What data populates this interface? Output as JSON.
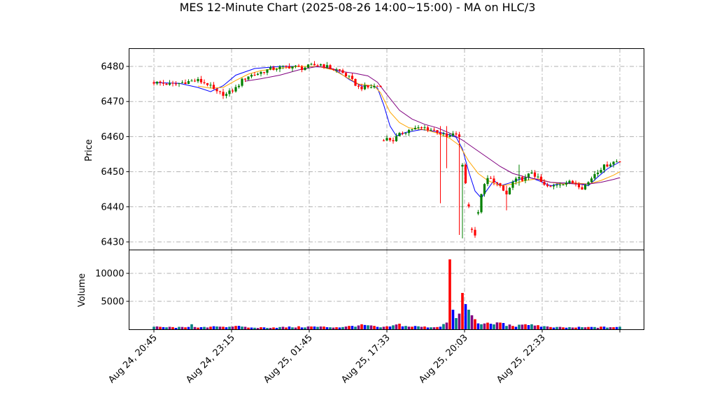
{
  "chart_data": [
    {
      "type": "candlestick",
      "title": "MES 12-Minute Chart (2025-08-26 14:00~15:00) - MA on HLC/3",
      "ylabel": "Price",
      "ylim": [
        6428,
        6485
      ],
      "yticks": [
        6430,
        6440,
        6450,
        6460,
        6470,
        6480
      ],
      "xticks": [
        "Aug 24, 20:45",
        "Aug 24, 23:15",
        "Aug 25, 01:45",
        "Aug 25, 17:33",
        "Aug 25, 20:03",
        "Aug 25, 22:33"
      ],
      "colors": {
        "up": "#008000",
        "down": "#ff0000",
        "ma_fast": "#0000ff",
        "ma_mid": "#ffa500",
        "ma_slow": "#800080"
      },
      "grid": true,
      "close_path": [
        [
          0,
          6475.5
        ],
        [
          6,
          6474.8
        ],
        [
          10,
          6475.6
        ],
        [
          14,
          6476.0
        ],
        [
          17,
          6475.0
        ],
        [
          20,
          6472.5
        ],
        [
          23,
          6472.0
        ],
        [
          26,
          6473.8
        ],
        [
          28,
          6476.0
        ],
        [
          30,
          6477.3
        ],
        [
          33,
          6478.0
        ],
        [
          36,
          6479.0
        ],
        [
          40,
          6479.7
        ],
        [
          44,
          6480.0
        ],
        [
          47,
          6479.5
        ],
        [
          50,
          6480.2
        ],
        [
          53,
          6480.6
        ],
        [
          56,
          6479.5
        ],
        [
          59,
          6478.8
        ],
        [
          62,
          6476.8
        ],
        [
          65,
          6474.0
        ],
        [
          68,
          6474.0
        ],
        [
          71,
          6474.5
        ],
        [
          72,
          6474.2
        ],
        [
          73,
          6459.5
        ],
        [
          76,
          6459.0
        ],
        [
          79,
          6461.2
        ],
        [
          82,
          6462.2
        ],
        [
          86,
          6462.5
        ],
        [
          90,
          6461.5
        ],
        [
          93,
          6459.8
        ],
        [
          96,
          6460.8
        ],
        [
          97,
          6459.5
        ],
        [
          98,
          6452.0
        ],
        [
          99,
          6447.0
        ],
        [
          100,
          6440.0
        ],
        [
          101,
          6434.0
        ],
        [
          102,
          6432.0
        ],
        [
          103,
          6438.0
        ],
        [
          104,
          6444.0
        ],
        [
          106,
          6448.0
        ],
        [
          108,
          6447.5
        ],
        [
          110,
          6445.5
        ],
        [
          112,
          6443.5
        ],
        [
          114,
          6447.0
        ],
        [
          116,
          6448.0
        ],
        [
          118,
          6448.0
        ],
        [
          120,
          6450.0
        ],
        [
          122,
          6448.0
        ],
        [
          124,
          6446.0
        ],
        [
          126,
          6445.5
        ],
        [
          128,
          6446.5
        ],
        [
          131,
          6447.0
        ],
        [
          134,
          6446.8
        ],
        [
          136,
          6445.5
        ],
        [
          138,
          6447.0
        ],
        [
          140,
          6449.5
        ],
        [
          142,
          6451.0
        ],
        [
          144,
          6452.0
        ],
        [
          146,
          6452.8
        ],
        [
          148,
          6453.0
        ]
      ],
      "ma_fast": [
        [
          0,
          6475.4
        ],
        [
          8,
          6475.2
        ],
        [
          14,
          6474.0
        ],
        [
          18,
          6472.8
        ],
        [
          22,
          6474.5
        ],
        [
          26,
          6477.5
        ],
        [
          32,
          6479.4
        ],
        [
          40,
          6480.0
        ],
        [
          48,
          6480.0
        ],
        [
          54,
          6479.8
        ],
        [
          58,
          6478.8
        ],
        [
          62,
          6476.3
        ],
        [
          66,
          6474.4
        ],
        [
          69,
          6474.6
        ],
        [
          71,
          6473.9
        ],
        [
          73,
          6469.0
        ],
        [
          75,
          6463.0
        ],
        [
          77,
          6460.2
        ],
        [
          80,
          6461.2
        ],
        [
          85,
          6462.0
        ],
        [
          90,
          6461.4
        ],
        [
          94,
          6460.5
        ],
        [
          96,
          6459.8
        ],
        [
          98,
          6456.5
        ],
        [
          100,
          6450.0
        ],
        [
          102,
          6444.5
        ],
        [
          104,
          6442.5
        ],
        [
          106,
          6445.0
        ],
        [
          108,
          6447.5
        ],
        [
          110,
          6446.0
        ],
        [
          113,
          6446.8
        ],
        [
          116,
          6447.8
        ],
        [
          119,
          6448.5
        ],
        [
          122,
          6447.5
        ],
        [
          126,
          6446.0
        ],
        [
          130,
          6446.8
        ],
        [
          134,
          6446.8
        ],
        [
          138,
          6446.0
        ],
        [
          141,
          6448.5
        ],
        [
          144,
          6450.8
        ],
        [
          148,
          6452.8
        ]
      ],
      "ma_mid": [
        [
          14,
          6474.4
        ],
        [
          18,
          6473.8
        ],
        [
          22,
          6474.0
        ],
        [
          26,
          6476.0
        ],
        [
          30,
          6477.8
        ],
        [
          34,
          6478.8
        ],
        [
          40,
          6479.5
        ],
        [
          46,
          6480.0
        ],
        [
          52,
          6480.0
        ],
        [
          57,
          6479.0
        ],
        [
          61,
          6477.0
        ],
        [
          65,
          6475.0
        ],
        [
          70,
          6474.4
        ],
        [
          72,
          6472.5
        ],
        [
          75,
          6467.0
        ],
        [
          78,
          6464.0
        ],
        [
          81,
          6462.5
        ],
        [
          86,
          6462.0
        ],
        [
          90,
          6461.0
        ],
        [
          94,
          6459.5
        ],
        [
          97,
          6457.5
        ],
        [
          100,
          6453.0
        ],
        [
          103,
          6449.5
        ],
        [
          106,
          6447.5
        ],
        [
          110,
          6446.0
        ],
        [
          114,
          6446.5
        ],
        [
          118,
          6447.5
        ],
        [
          122,
          6448.0
        ],
        [
          126,
          6447.0
        ],
        [
          130,
          6446.5
        ],
        [
          134,
          6446.8
        ],
        [
          138,
          6446.5
        ],
        [
          142,
          6447.5
        ],
        [
          146,
          6449.0
        ],
        [
          148,
          6450.0
        ]
      ],
      "ma_slow": [
        [
          29,
          6475.8
        ],
        [
          34,
          6476.5
        ],
        [
          40,
          6477.5
        ],
        [
          46,
          6479.0
        ],
        [
          52,
          6480.0
        ],
        [
          56,
          6479.5
        ],
        [
          60,
          6478.5
        ],
        [
          64,
          6478.0
        ],
        [
          68,
          6477.3
        ],
        [
          71,
          6475.5
        ],
        [
          74,
          6472.0
        ],
        [
          78,
          6467.5
        ],
        [
          82,
          6465.0
        ],
        [
          86,
          6463.5
        ],
        [
          90,
          6462.5
        ],
        [
          94,
          6461.0
        ],
        [
          98,
          6459.0
        ],
        [
          102,
          6456.5
        ],
        [
          106,
          6454.0
        ],
        [
          110,
          6451.5
        ],
        [
          114,
          6449.5
        ],
        [
          118,
          6448.5
        ],
        [
          122,
          6447.8
        ],
        [
          126,
          6447.0
        ],
        [
          130,
          6446.8
        ],
        [
          134,
          6446.5
        ],
        [
          138,
          6446.5
        ],
        [
          142,
          6447.0
        ],
        [
          146,
          6447.8
        ],
        [
          148,
          6448.3
        ]
      ],
      "spikes": [
        {
          "i": 91,
          "high": 6463,
          "low": 6441
        },
        {
          "i": 93,
          "high": 6463,
          "low": 6451
        },
        {
          "i": 97,
          "high": 6448,
          "low": 6432
        },
        {
          "i": 98,
          "high": 6446,
          "low": 6431
        },
        {
          "i": 112,
          "high": 6446,
          "low": 6439
        },
        {
          "i": 116,
          "high": 6452,
          "low": 6446
        }
      ]
    },
    {
      "type": "bar",
      "ylabel": "Volume",
      "ylim": [
        0,
        12500
      ],
      "yticks": [
        5000,
        10000
      ],
      "grid": true,
      "bar_colors": [
        "#008080",
        "#800080",
        "#ff0000",
        "#0000ff"
      ],
      "volume_path": [
        [
          0,
          450
        ],
        [
          10,
          350
        ],
        [
          12,
          900
        ],
        [
          14,
          300
        ],
        [
          20,
          500
        ],
        [
          26,
          600
        ],
        [
          30,
          300
        ],
        [
          40,
          400
        ],
        [
          50,
          500
        ],
        [
          60,
          400
        ],
        [
          66,
          900
        ],
        [
          72,
          350
        ],
        [
          75,
          500
        ],
        [
          78,
          1000
        ],
        [
          80,
          600
        ],
        [
          86,
          500
        ],
        [
          90,
          400
        ],
        [
          93,
          1200
        ],
        [
          94,
          12500
        ],
        [
          95,
          3500
        ],
        [
          96,
          2000
        ],
        [
          97,
          2800
        ],
        [
          98,
          6500
        ],
        [
          99,
          4500
        ],
        [
          100,
          3500
        ],
        [
          101,
          2500
        ],
        [
          102,
          1800
        ],
        [
          104,
          900
        ],
        [
          110,
          1200
        ],
        [
          114,
          600
        ],
        [
          120,
          900
        ],
        [
          126,
          400
        ],
        [
          130,
          350
        ],
        [
          140,
          400
        ],
        [
          148,
          450
        ]
      ]
    }
  ]
}
